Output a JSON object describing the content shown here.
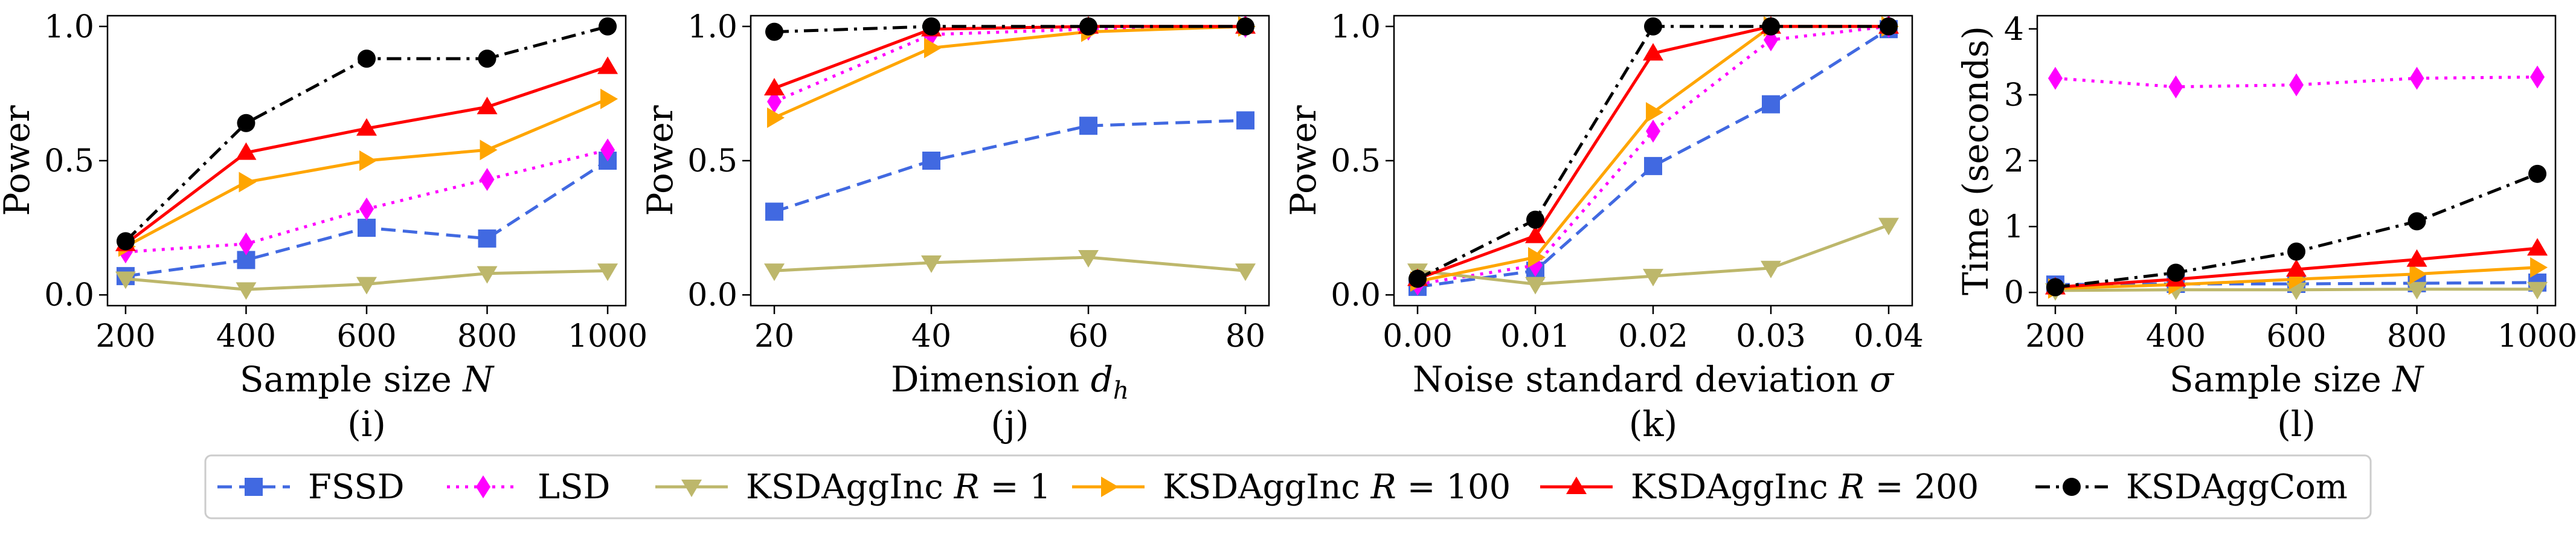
{
  "colors": {
    "fssd": "#4169e1",
    "lsd": "#ff00ff",
    "ksdagginc_r1": "#bdb76b",
    "ksdagginc_r100": "#ffa500",
    "ksdagginc_r200": "#ff0000",
    "ksdaggcom": "#000000"
  },
  "legend": {
    "placement": "bottom-center",
    "entries": [
      {
        "key": "fssd",
        "label": "FSSD",
        "marker": "square",
        "dash": "dashed"
      },
      {
        "key": "lsd",
        "label": "LSD",
        "marker": "diamond",
        "dash": "dotted"
      },
      {
        "key": "ksdagginc_r1",
        "label": "KSDAggInc R = 1",
        "marker": "triangle-down",
        "dash": "solid"
      },
      {
        "key": "ksdagginc_r100",
        "label": "KSDAggInc R = 100",
        "marker": "triangle-right",
        "dash": "solid"
      },
      {
        "key": "ksdagginc_r200",
        "label": "KSDAggInc R = 200",
        "marker": "triangle-up",
        "dash": "solid"
      },
      {
        "key": "ksdaggcom",
        "label": "KSDAggCom",
        "marker": "circle",
        "dash": "dashdot"
      }
    ]
  },
  "chart_data": [
    {
      "type": "line",
      "caption": "(i)",
      "xlabel": "Sample size N",
      "ylabel": "Power",
      "x": [
        200,
        400,
        600,
        800,
        1000
      ],
      "xticks": [
        200,
        400,
        600,
        800,
        1000
      ],
      "xtick_labels": [
        "200",
        "400",
        "600",
        "800",
        "1000"
      ],
      "xlim": [
        170,
        1030
      ],
      "ylim": [
        -0.04,
        1.04
      ],
      "yticks": [
        0.0,
        0.5,
        1.0
      ],
      "ytick_labels": [
        "0.0",
        "0.5",
        "1.0"
      ],
      "series": [
        {
          "key": "fssd",
          "name": "FSSD",
          "values": [
            0.07,
            0.13,
            0.25,
            0.21,
            0.5
          ]
        },
        {
          "key": "lsd",
          "name": "LSD",
          "values": [
            0.16,
            0.19,
            0.32,
            0.43,
            0.54
          ]
        },
        {
          "key": "ksdagginc_r1",
          "name": "KSDAggInc R = 1",
          "values": [
            0.06,
            0.02,
            0.04,
            0.08,
            0.09
          ]
        },
        {
          "key": "ksdagginc_r100",
          "name": "KSDAggInc R = 100",
          "values": [
            0.18,
            0.42,
            0.5,
            0.54,
            0.73
          ]
        },
        {
          "key": "ksdagginc_r200",
          "name": "KSDAggInc R = 200",
          "values": [
            0.19,
            0.53,
            0.62,
            0.7,
            0.85
          ]
        },
        {
          "key": "ksdaggcom",
          "name": "KSDAggCom",
          "values": [
            0.2,
            0.64,
            0.88,
            0.88,
            1.0
          ]
        }
      ]
    },
    {
      "type": "line",
      "caption": "(j)",
      "xlabel": "Dimension dh",
      "ylabel": "Power",
      "x": [
        20,
        40,
        60,
        80
      ],
      "xticks": [
        20,
        40,
        60,
        80
      ],
      "xtick_labels": [
        "20",
        "40",
        "60",
        "80"
      ],
      "xlim": [
        17,
        83
      ],
      "ylim": [
        -0.04,
        1.04
      ],
      "yticks": [
        0.0,
        0.5,
        1.0
      ],
      "ytick_labels": [
        "0.0",
        "0.5",
        "1.0"
      ],
      "series": [
        {
          "key": "fssd",
          "name": "FSSD",
          "values": [
            0.31,
            0.5,
            0.63,
            0.65
          ]
        },
        {
          "key": "lsd",
          "name": "LSD",
          "values": [
            0.72,
            0.97,
            0.99,
            1.0
          ]
        },
        {
          "key": "ksdagginc_r1",
          "name": "KSDAggInc R = 1",
          "values": [
            0.09,
            0.12,
            0.14,
            0.09
          ]
        },
        {
          "key": "ksdagginc_r100",
          "name": "KSDAggInc R = 100",
          "values": [
            0.66,
            0.92,
            0.98,
            1.0
          ]
        },
        {
          "key": "ksdagginc_r200",
          "name": "KSDAggInc R = 200",
          "values": [
            0.77,
            0.99,
            1.0,
            1.0
          ]
        },
        {
          "key": "ksdaggcom",
          "name": "KSDAggCom",
          "values": [
            0.98,
            1.0,
            1.0,
            1.0
          ]
        }
      ]
    },
    {
      "type": "line",
      "caption": "(k)",
      "xlabel": "Noise standard deviation σ",
      "ylabel": "Power",
      "x": [
        0.0,
        0.01,
        0.02,
        0.03,
        0.04
      ],
      "xticks": [
        0.0,
        0.01,
        0.02,
        0.03,
        0.04
      ],
      "xtick_labels": [
        "0.00",
        "0.01",
        "0.02",
        "0.03",
        "0.04"
      ],
      "xlim": [
        -0.002,
        0.042
      ],
      "ylim": [
        -0.04,
        1.04
      ],
      "yticks": [
        0.0,
        0.5,
        1.0
      ],
      "ytick_labels": [
        "0.0",
        "0.5",
        "1.0"
      ],
      "series": [
        {
          "key": "fssd",
          "name": "FSSD",
          "values": [
            0.03,
            0.09,
            0.48,
            0.71,
            0.99
          ]
        },
        {
          "key": "lsd",
          "name": "LSD",
          "values": [
            0.04,
            0.11,
            0.61,
            0.95,
            1.0
          ]
        },
        {
          "key": "ksdagginc_r1",
          "name": "KSDAggInc R = 1",
          "values": [
            0.09,
            0.04,
            0.07,
            0.1,
            0.26
          ]
        },
        {
          "key": "ksdagginc_r100",
          "name": "KSDAggInc R = 100",
          "values": [
            0.05,
            0.14,
            0.68,
            1.0,
            1.0
          ]
        },
        {
          "key": "ksdagginc_r200",
          "name": "KSDAggInc R = 200",
          "values": [
            0.06,
            0.22,
            0.9,
            1.0,
            1.0
          ]
        },
        {
          "key": "ksdaggcom",
          "name": "KSDAggCom",
          "values": [
            0.06,
            0.28,
            1.0,
            1.0,
            1.0
          ]
        }
      ]
    },
    {
      "type": "line",
      "caption": "(l)",
      "xlabel": "Sample size N",
      "ylabel": "Time (seconds)",
      "x": [
        200,
        400,
        600,
        800,
        1000
      ],
      "xticks": [
        200,
        400,
        600,
        800,
        1000
      ],
      "xtick_labels": [
        "200",
        "400",
        "600",
        "800",
        "1000"
      ],
      "xlim": [
        170,
        1030
      ],
      "ylim": [
        -0.2,
        4.2
      ],
      "yticks": [
        0,
        1,
        2,
        3,
        4
      ],
      "ytick_labels": [
        "0",
        "1",
        "2",
        "3",
        "4"
      ],
      "series": [
        {
          "key": "fssd",
          "name": "FSSD",
          "values": [
            0.12,
            0.13,
            0.13,
            0.14,
            0.15
          ]
        },
        {
          "key": "lsd",
          "name": "LSD",
          "values": [
            3.25,
            3.12,
            3.15,
            3.25,
            3.27
          ]
        },
        {
          "key": "ksdagginc_r1",
          "name": "KSDAggInc R = 1",
          "values": [
            0.03,
            0.04,
            0.04,
            0.05,
            0.05
          ]
        },
        {
          "key": "ksdagginc_r100",
          "name": "KSDAggInc R = 100",
          "values": [
            0.06,
            0.12,
            0.2,
            0.28,
            0.38
          ]
        },
        {
          "key": "ksdagginc_r200",
          "name": "KSDAggInc R = 200",
          "values": [
            0.08,
            0.2,
            0.35,
            0.5,
            0.67
          ]
        },
        {
          "key": "ksdaggcom",
          "name": "KSDAggCom",
          "values": [
            0.08,
            0.3,
            0.62,
            1.08,
            1.8
          ]
        }
      ]
    }
  ]
}
